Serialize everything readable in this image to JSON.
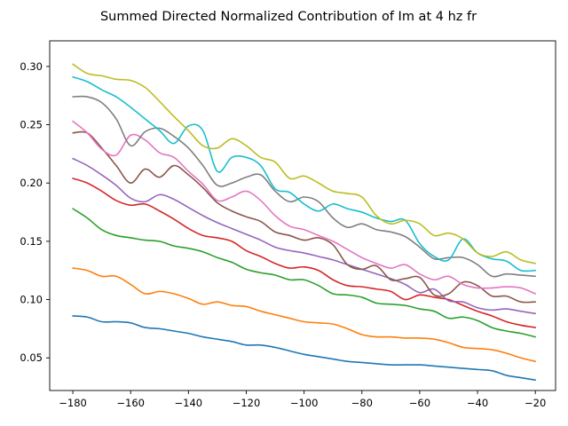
{
  "chart_data": {
    "type": "line",
    "title": "Summed Directed Normalized Contribution of Im at 4 hz fr",
    "xlabel": "",
    "ylabel": "",
    "xlim": [
      -188,
      -13
    ],
    "ylim": [
      0.022,
      0.322
    ],
    "xticks": [
      -180,
      -160,
      -140,
      -120,
      -100,
      -80,
      -60,
      -40,
      -20
    ],
    "xtick_labels": [
      "−180",
      "−160",
      "−140",
      "−120",
      "−100",
      "−80",
      "−60",
      "−40",
      "−20"
    ],
    "yticks": [
      0.05,
      0.1,
      0.15,
      0.2,
      0.25,
      0.3
    ],
    "ytick_labels": [
      "0.05",
      "0.10",
      "0.15",
      "0.20",
      "0.25",
      "0.30"
    ],
    "grid": false,
    "legend": "none",
    "x": [
      -180,
      -175,
      -170,
      -165,
      -160,
      -155,
      -150,
      -145,
      -140,
      -135,
      -130,
      -125,
      -120,
      -115,
      -110,
      -105,
      -100,
      -95,
      -90,
      -85,
      -80,
      -75,
      -70,
      -65,
      -60,
      -55,
      -50,
      -45,
      -40,
      -35,
      -30,
      -25,
      -20
    ],
    "series": [
      {
        "color": "#1f77b4",
        "values": [
          0.086,
          0.085,
          0.081,
          0.081,
          0.08,
          0.076,
          0.075,
          0.073,
          0.071,
          0.068,
          0.066,
          0.064,
          0.061,
          0.061,
          0.059,
          0.056,
          0.053,
          0.051,
          0.049,
          0.047,
          0.046,
          0.045,
          0.044,
          0.044,
          0.044,
          0.043,
          0.042,
          0.041,
          0.04,
          0.039,
          0.035,
          0.033,
          0.031
        ]
      },
      {
        "color": "#ff7f0e",
        "values": [
          0.127,
          0.125,
          0.12,
          0.12,
          0.113,
          0.105,
          0.107,
          0.105,
          0.101,
          0.096,
          0.098,
          0.095,
          0.094,
          0.09,
          0.087,
          0.084,
          0.081,
          0.08,
          0.079,
          0.075,
          0.07,
          0.068,
          0.068,
          0.067,
          0.067,
          0.066,
          0.063,
          0.059,
          0.058,
          0.057,
          0.054,
          0.05,
          0.047
        ]
      },
      {
        "color": "#2ca02c",
        "values": [
          0.178,
          0.17,
          0.16,
          0.155,
          0.153,
          0.151,
          0.15,
          0.146,
          0.144,
          0.141,
          0.136,
          0.132,
          0.126,
          0.123,
          0.121,
          0.117,
          0.117,
          0.112,
          0.105,
          0.104,
          0.102,
          0.097,
          0.096,
          0.095,
          0.092,
          0.09,
          0.084,
          0.085,
          0.082,
          0.076,
          0.073,
          0.071,
          0.068
        ]
      },
      {
        "color": "#d62728",
        "values": [
          0.204,
          0.2,
          0.193,
          0.185,
          0.181,
          0.182,
          0.176,
          0.169,
          0.161,
          0.155,
          0.153,
          0.15,
          0.142,
          0.137,
          0.131,
          0.127,
          0.128,
          0.125,
          0.117,
          0.112,
          0.111,
          0.109,
          0.107,
          0.1,
          0.104,
          0.102,
          0.1,
          0.095,
          0.09,
          0.086,
          0.081,
          0.078,
          0.076
        ]
      },
      {
        "color": "#9467bd",
        "values": [
          0.221,
          0.215,
          0.207,
          0.198,
          0.187,
          0.184,
          0.19,
          0.186,
          0.179,
          0.172,
          0.166,
          0.161,
          0.156,
          0.151,
          0.145,
          0.142,
          0.14,
          0.137,
          0.134,
          0.13,
          0.126,
          0.122,
          0.118,
          0.113,
          0.106,
          0.109,
          0.099,
          0.098,
          0.093,
          0.091,
          0.092,
          0.09,
          0.088
        ]
      },
      {
        "color": "#8c564b",
        "values": [
          0.243,
          0.243,
          0.23,
          0.215,
          0.2,
          0.212,
          0.205,
          0.215,
          0.207,
          0.196,
          0.183,
          0.176,
          0.171,
          0.167,
          0.158,
          0.155,
          0.151,
          0.153,
          0.147,
          0.13,
          0.126,
          0.129,
          0.117,
          0.118,
          0.119,
          0.104,
          0.105,
          0.115,
          0.112,
          0.103,
          0.103,
          0.098,
          0.098
        ]
      },
      {
        "color": "#e377c2",
        "values": [
          0.253,
          0.243,
          0.229,
          0.224,
          0.241,
          0.237,
          0.226,
          0.222,
          0.21,
          0.199,
          0.185,
          0.188,
          0.193,
          0.185,
          0.172,
          0.163,
          0.16,
          0.155,
          0.15,
          0.143,
          0.136,
          0.131,
          0.127,
          0.13,
          0.122,
          0.117,
          0.12,
          0.113,
          0.11,
          0.11,
          0.111,
          0.11,
          0.105
        ]
      },
      {
        "color": "#7f7f7f",
        "values": [
          0.274,
          0.274,
          0.269,
          0.255,
          0.232,
          0.244,
          0.247,
          0.24,
          0.23,
          0.215,
          0.198,
          0.2,
          0.205,
          0.207,
          0.193,
          0.184,
          0.188,
          0.184,
          0.17,
          0.162,
          0.165,
          0.16,
          0.158,
          0.154,
          0.145,
          0.135,
          0.136,
          0.136,
          0.13,
          0.12,
          0.122,
          0.121,
          0.12
        ]
      },
      {
        "color": "#17becf",
        "values": [
          0.291,
          0.287,
          0.28,
          0.274,
          0.265,
          0.255,
          0.245,
          0.234,
          0.249,
          0.245,
          0.21,
          0.222,
          0.222,
          0.215,
          0.195,
          0.192,
          0.182,
          0.176,
          0.182,
          0.178,
          0.175,
          0.17,
          0.167,
          0.168,
          0.148,
          0.137,
          0.134,
          0.152,
          0.14,
          0.135,
          0.133,
          0.125,
          0.125
        ]
      },
      {
        "color": "#bcbd22",
        "values": [
          0.302,
          0.294,
          0.292,
          0.289,
          0.288,
          0.282,
          0.27,
          0.257,
          0.245,
          0.232,
          0.23,
          0.238,
          0.232,
          0.222,
          0.218,
          0.204,
          0.206,
          0.2,
          0.193,
          0.191,
          0.188,
          0.172,
          0.165,
          0.168,
          0.165,
          0.155,
          0.157,
          0.152,
          0.14,
          0.137,
          0.141,
          0.134,
          0.131
        ]
      }
    ]
  }
}
